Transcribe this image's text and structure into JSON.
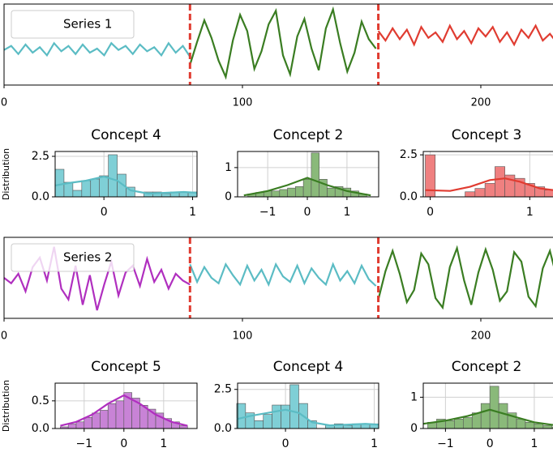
{
  "chart_data": [
    {
      "type": "line",
      "legend_label": "Series 1",
      "xlim": [
        0,
        233
      ],
      "ylim": [
        -3,
        3
      ],
      "xticks": [
        0,
        100,
        200
      ],
      "boundaries": [
        78,
        157
      ],
      "series": [
        {
          "color": "#5bbcc4",
          "x": [
            0,
            3,
            6,
            9,
            12,
            15,
            18,
            21,
            24,
            27,
            30,
            33,
            36,
            39,
            42,
            45,
            48,
            51,
            54,
            57,
            60,
            63,
            66,
            69,
            72,
            75,
            78
          ],
          "values": [
            -0.4,
            -0.1,
            -0.7,
            0.0,
            -0.6,
            -0.2,
            -0.8,
            0.1,
            -0.5,
            -0.1,
            -0.7,
            0.0,
            -0.6,
            -0.3,
            -0.8,
            0.1,
            -0.4,
            -0.1,
            -0.7,
            0.0,
            -0.5,
            -0.2,
            -0.8,
            0.1,
            -0.6,
            -0.1,
            -0.9
          ]
        },
        {
          "color": "#3a7d22",
          "x": [
            78,
            81,
            84,
            87,
            90,
            93,
            96,
            99,
            102,
            105,
            108,
            111,
            114,
            117,
            120,
            123,
            126,
            129,
            132,
            135,
            138,
            141,
            144,
            147,
            150,
            153,
            156
          ],
          "values": [
            -1.5,
            0.2,
            1.8,
            0.5,
            -1.2,
            -2.4,
            0.3,
            2.2,
            1.0,
            -1.8,
            -0.5,
            1.5,
            2.5,
            -0.8,
            -2.2,
            0.6,
            1.9,
            -0.3,
            -1.9,
            1.2,
            2.6,
            0.1,
            -2.0,
            -0.6,
            1.7,
            0.4,
            -0.3
          ]
        },
        {
          "color": "#e03c31",
          "x": [
            157,
            160,
            163,
            166,
            169,
            172,
            175,
            178,
            181,
            184,
            187,
            190,
            193,
            196,
            199,
            202,
            205,
            208,
            211,
            214,
            217,
            220,
            223,
            226,
            229,
            232,
            235
          ],
          "values": [
            1.0,
            0.3,
            1.2,
            0.4,
            1.1,
            0.0,
            1.3,
            0.5,
            0.9,
            0.2,
            1.4,
            0.4,
            1.0,
            0.1,
            1.2,
            0.6,
            1.3,
            0.2,
            0.9,
            0.0,
            1.1,
            0.5,
            1.4,
            0.3,
            0.8,
            0.1,
            1.0
          ]
        }
      ]
    },
    {
      "type": "histogram",
      "title": "Concept 4",
      "ylabel": "Distribution",
      "color": "#7fcfd6",
      "line_color": "#5bbcc4",
      "grid": true,
      "xlim": [
        -0.55,
        1.05
      ],
      "ylim": [
        0,
        2.8
      ],
      "xticks": [
        0,
        1
      ],
      "yticks": [
        {
          "value": 0,
          "label": "0.0"
        },
        2.5
      ],
      "bins": [
        -0.55,
        -0.45,
        -0.35,
        -0.25,
        -0.15,
        -0.05,
        0.05,
        0.15,
        0.25,
        0.35,
        0.45,
        0.55,
        0.65,
        0.75,
        0.85,
        0.95,
        1.05
      ],
      "counts": [
        1.7,
        0.9,
        0.4,
        1.0,
        1.1,
        1.3,
        2.6,
        1.4,
        0.6,
        0,
        0.3,
        0.3,
        0.2,
        0.3,
        0.3,
        0.3
      ],
      "kde": {
        "x": [
          -0.55,
          -0.4,
          -0.2,
          0,
          0.15,
          0.3,
          0.5,
          0.7,
          0.9,
          1.05
        ],
        "values": [
          0.7,
          0.85,
          1.0,
          1.25,
          1.0,
          0.4,
          0.2,
          0.25,
          0.3,
          0.25
        ]
      }
    },
    {
      "type": "histogram",
      "title": "Concept 2",
      "color": "#8ab97a",
      "line_color": "#3a7d22",
      "grid": true,
      "xlim": [
        -1.76,
        1.8
      ],
      "ylim": [
        0,
        1.55
      ],
      "xticks": [
        {
          "value": -1,
          "label": "−1"
        },
        0,
        1
      ],
      "yticks": [
        0,
        1
      ],
      "bins": [
        -1.5,
        -1.3,
        -1.1,
        -0.9,
        -0.7,
        -0.5,
        -0.3,
        -0.1,
        0.1,
        0.3,
        0.5,
        0.7,
        0.9,
        1.1,
        1.3,
        1.5
      ],
      "counts": [
        0.1,
        0.15,
        0.2,
        0.2,
        0.25,
        0.3,
        0.35,
        0.6,
        1.5,
        0.6,
        0.3,
        0.35,
        0.3,
        0.2,
        0.1
      ],
      "kde": {
        "x": [
          -1.6,
          -1,
          -0.5,
          0,
          0.5,
          1,
          1.6
        ],
        "values": [
          0.05,
          0.2,
          0.4,
          0.65,
          0.4,
          0.2,
          0.05
        ]
      }
    },
    {
      "type": "histogram",
      "title": "Concept 3",
      "color": "#ef8080",
      "line_color": "#e03c31",
      "grid": true,
      "xlim": [
        -0.07,
        1.38
      ],
      "ylim": [
        0,
        2.7
      ],
      "xticks": [
        0,
        1
      ],
      "yticks": [
        {
          "value": 0,
          "label": "0.0"
        },
        2.5
      ],
      "bins": [
        -0.05,
        0.05,
        0.15,
        0.25,
        0.35,
        0.45,
        0.55,
        0.65,
        0.75,
        0.85,
        0.95,
        1.05,
        1.15,
        1.25,
        1.35
      ],
      "counts": [
        2.5,
        0,
        0,
        0,
        0.3,
        0.5,
        0.8,
        1.8,
        1.3,
        1.1,
        0.8,
        0.6,
        0.4,
        0.4
      ],
      "kde": {
        "x": [
          -0.05,
          0.2,
          0.4,
          0.6,
          0.75,
          0.9,
          1.1,
          1.38
        ],
        "values": [
          0.4,
          0.35,
          0.6,
          1.0,
          1.1,
          0.9,
          0.5,
          0.3
        ]
      }
    },
    {
      "type": "line",
      "legend_label": "Series 2",
      "xlim": [
        0,
        233
      ],
      "ylim": [
        -3,
        3
      ],
      "xticks": [
        0,
        100,
        200
      ],
      "boundaries": [
        78,
        157
      ],
      "series": [
        {
          "color": "#b02fbf",
          "x": [
            0,
            3,
            6,
            9,
            12,
            15,
            18,
            21,
            24,
            27,
            30,
            33,
            36,
            39,
            42,
            45,
            48,
            51,
            54,
            57,
            60,
            63,
            66,
            69,
            72,
            75,
            78
          ],
          "values": [
            0.0,
            -0.4,
            0.3,
            -1.0,
            0.8,
            1.5,
            -0.2,
            2.3,
            -0.8,
            -1.6,
            0.9,
            -2.0,
            0.2,
            -2.4,
            -0.5,
            1.2,
            -1.3,
            0.4,
            0.9,
            -0.6,
            1.4,
            -0.3,
            0.6,
            -0.8,
            0.3,
            -0.2,
            -0.5
          ]
        },
        {
          "color": "#5bbcc4",
          "x": [
            78,
            81,
            84,
            87,
            90,
            93,
            96,
            99,
            102,
            105,
            108,
            111,
            114,
            117,
            120,
            123,
            126,
            129,
            132,
            135,
            138,
            141,
            144,
            147,
            150,
            153,
            156
          ],
          "values": [
            1.0,
            -0.3,
            0.8,
            0.0,
            -0.4,
            1.0,
            0.2,
            -0.5,
            0.9,
            -0.2,
            0.6,
            -0.5,
            1.0,
            0.1,
            -0.3,
            0.9,
            -0.4,
            0.7,
            0.0,
            -0.5,
            1.0,
            -0.2,
            0.5,
            -0.4,
            0.9,
            -0.1,
            -0.6
          ]
        },
        {
          "color": "#3a7d22",
          "x": [
            157,
            160,
            163,
            166,
            169,
            172,
            175,
            178,
            181,
            184,
            187,
            190,
            193,
            196,
            199,
            202,
            205,
            208,
            211,
            214,
            217,
            220,
            223,
            226,
            229,
            232,
            235
          ],
          "values": [
            -1.6,
            0.5,
            2.0,
            0.3,
            -1.8,
            -0.9,
            1.8,
            1.0,
            -1.5,
            -2.2,
            0.8,
            2.2,
            -0.2,
            -2.0,
            0.4,
            2.1,
            0.6,
            -1.7,
            -1.0,
            1.9,
            1.2,
            -1.4,
            -2.1,
            0.7,
            2.0,
            -0.1,
            0.3
          ]
        }
      ]
    },
    {
      "type": "histogram",
      "title": "Concept 5",
      "ylabel": "Distribution",
      "color": "#c883d6",
      "line_color": "#b02fbf",
      "grid": true,
      "xlim": [
        -1.73,
        1.84
      ],
      "ylim": [
        0,
        0.82
      ],
      "xticks": [
        {
          "value": -1,
          "label": "−1"
        },
        0,
        1
      ],
      "yticks": [
        {
          "value": 0,
          "label": "0.0"
        },
        0.5
      ],
      "bins": [
        -1.6,
        -1.4,
        -1.2,
        -1.0,
        -0.8,
        -0.6,
        -0.4,
        -0.2,
        0,
        0.2,
        0.4,
        0.6,
        0.8,
        1.0,
        1.2,
        1.4,
        1.6
      ],
      "counts": [
        0.03,
        0.08,
        0.12,
        0.2,
        0.28,
        0.33,
        0.45,
        0.5,
        0.65,
        0.55,
        0.42,
        0.35,
        0.28,
        0.18,
        0.12,
        0.05
      ],
      "kde": {
        "x": [
          -1.6,
          -1.2,
          -0.8,
          -0.4,
          0,
          0.4,
          0.8,
          1.2,
          1.6
        ],
        "values": [
          0.05,
          0.12,
          0.25,
          0.45,
          0.6,
          0.45,
          0.25,
          0.12,
          0.05
        ]
      }
    },
    {
      "type": "histogram",
      "title": "Concept 4",
      "color": "#7fcfd6",
      "line_color": "#5bbcc4",
      "grid": true,
      "xlim": [
        -0.54,
        1.05
      ],
      "ylim": [
        0,
        2.9
      ],
      "xticks": [
        0,
        1
      ],
      "yticks": [
        {
          "value": 0,
          "label": "0.0"
        },
        2.5
      ],
      "bins": [
        -0.55,
        -0.45,
        -0.35,
        -0.25,
        -0.15,
        -0.05,
        0.05,
        0.15,
        0.25,
        0.35,
        0.45,
        0.55,
        0.65,
        0.75,
        0.85,
        0.95,
        1.05
      ],
      "counts": [
        1.6,
        1.0,
        0.5,
        0.9,
        1.5,
        1.5,
        2.8,
        1.6,
        0.5,
        0,
        0.2,
        0.3,
        0.2,
        0.3,
        0.3,
        0.3
      ],
      "kde": {
        "x": [
          -0.55,
          -0.4,
          -0.2,
          0,
          0.15,
          0.3,
          0.5,
          0.7,
          0.9,
          1.05
        ],
        "values": [
          0.6,
          0.8,
          1.0,
          1.2,
          1.0,
          0.4,
          0.2,
          0.25,
          0.3,
          0.25
        ]
      }
    },
    {
      "type": "histogram",
      "title": "Concept 2",
      "color": "#8ab97a",
      "line_color": "#3a7d22",
      "grid": true,
      "xlim": [
        -1.5,
        1.75
      ],
      "ylim": [
        0,
        1.45
      ],
      "xticks": [
        {
          "value": -1,
          "label": "−1"
        },
        0,
        1
      ],
      "yticks": [
        0,
        1
      ],
      "bins": [
        -1.4,
        -1.2,
        -1.0,
        -0.8,
        -0.6,
        -0.4,
        -0.2,
        0,
        0.2,
        0.4,
        0.6,
        0.8,
        1.0,
        1.2,
        1.4,
        1.6
      ],
      "counts": [
        0.2,
        0.3,
        0.25,
        0.3,
        0.35,
        0.5,
        0.8,
        1.35,
        0.8,
        0.5,
        0.3,
        0.2,
        0.15,
        0.1,
        0.05
      ],
      "kde": {
        "x": [
          -1.5,
          -1,
          -0.5,
          0,
          0.5,
          1,
          1.75
        ],
        "values": [
          0.15,
          0.25,
          0.4,
          0.6,
          0.4,
          0.2,
          0.05
        ]
      }
    }
  ]
}
